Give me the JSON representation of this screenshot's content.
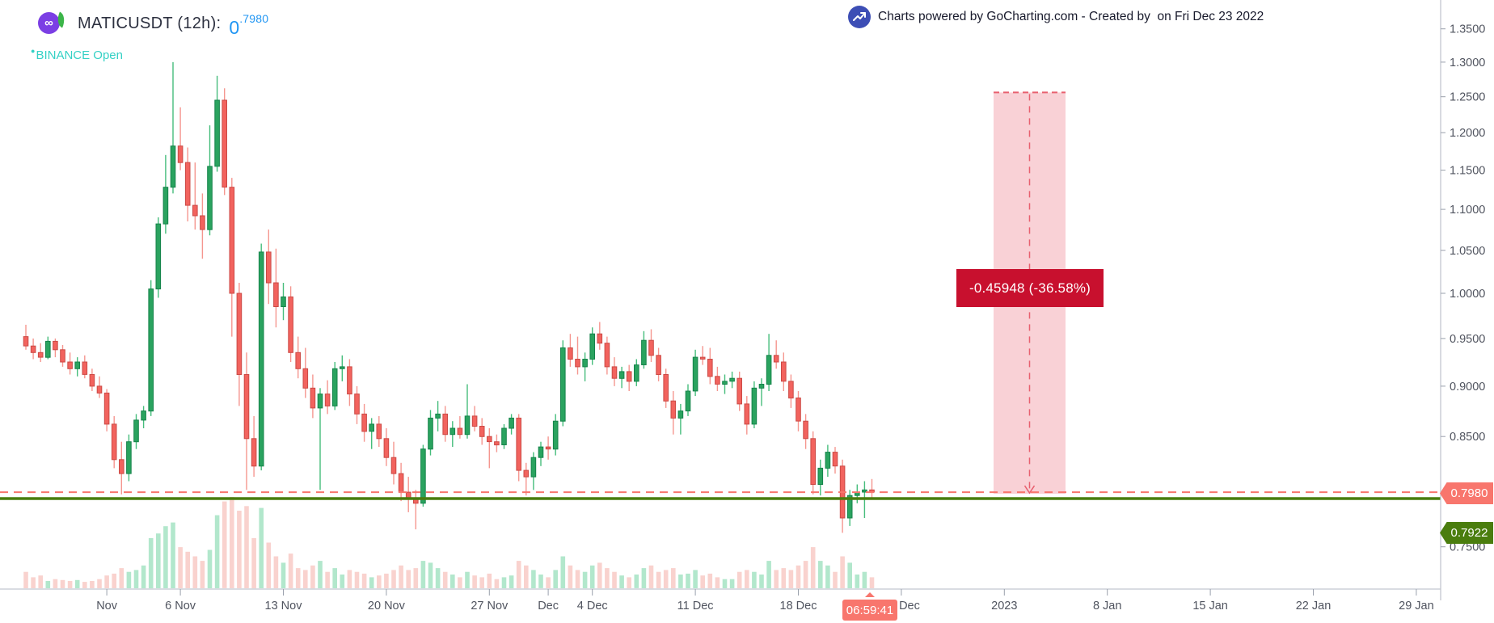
{
  "header": {
    "symbol": "MATICUSDT (12h):",
    "price_main": "0",
    "price_sup": ".7980",
    "exchange_dot": "●",
    "exchange_status": "BINANCE Open",
    "logo_glyph": "∞"
  },
  "attribution": {
    "text": "Charts powered by GoCharting.com - Created by  on Fri Dec 23 2022"
  },
  "price_axis": {
    "last_price_badge": "0.7980",
    "secondary_badge": "0.7922",
    "labels": [
      {
        "text": "1.3500",
        "value": 1.35
      },
      {
        "text": "1.3000",
        "value": 1.3
      },
      {
        "text": "1.2500",
        "value": 1.25
      },
      {
        "text": "1.2000",
        "value": 1.2
      },
      {
        "text": "1.1500",
        "value": 1.15
      },
      {
        "text": "1.1000",
        "value": 1.1
      },
      {
        "text": "1.0500",
        "value": 1.05
      },
      {
        "text": "1.0000",
        "value": 1.0
      },
      {
        "text": "0.9500",
        "value": 0.95
      },
      {
        "text": "0.9000",
        "value": 0.9
      },
      {
        "text": "0.8500",
        "value": 0.85
      },
      {
        "text": "0.7500",
        "value": 0.75
      }
    ]
  },
  "time_axis": {
    "current_time_badge": "06:59:41",
    "labels": [
      {
        "text": "Nov",
        "i": 11
      },
      {
        "text": "6 Nov",
        "i": 21
      },
      {
        "text": "13 Nov",
        "i": 35
      },
      {
        "text": "20 Nov",
        "i": 49
      },
      {
        "text": "27 Nov",
        "i": 63
      },
      {
        "text": "Dec",
        "i": 71
      },
      {
        "text": "4 Dec",
        "i": 77
      },
      {
        "text": "11 Dec",
        "i": 91
      },
      {
        "text": "18 Dec",
        "i": 105
      },
      {
        "text": "25 Dec",
        "i": 119
      },
      {
        "text": "2023",
        "i": 133
      },
      {
        "text": "8 Jan",
        "i": 147
      },
      {
        "text": "15 Jan",
        "i": 161
      },
      {
        "text": "22 Jan",
        "i": 175
      },
      {
        "text": "29 Jan",
        "i": 189
      }
    ]
  },
  "measure_tool": {
    "label": "-0.45948 (-36.58%)",
    "change": "-0.45948",
    "change_pct": "-36.58%",
    "from_price": 1.25602,
    "to_price": 0.79654
  },
  "lines": {
    "last_price_line": 0.798,
    "support_line": 0.7922
  },
  "colors": {
    "bull": "#2aa35f",
    "bull_border": "#15834a",
    "bull_wick": "#46bd7c",
    "bear": "#f2635e",
    "bear_border": "#cb4a45",
    "bear_wick": "#f5968f",
    "bull_vol": "#b2e7cc",
    "bear_vol": "#f9d2ce",
    "last_price": "#f8766d",
    "support": "#4a7d0e",
    "measure_fill": "rgba(236,112,128,0.32)",
    "measure_dash": "#e8606f",
    "measure_label_bg": "#c8102e",
    "axis_line": "#c2c6d0",
    "axis_text": "#50545f",
    "accent_blue": "#2196f3",
    "teal": "#35d1c5",
    "logo_purple": "#7b3fe4",
    "attrib_icon_bg": "#3d4eb5"
  },
  "chart_data": {
    "type": "candlestick",
    "symbol": "MATICUSDT",
    "exchange": "BINANCE",
    "interval": "12h",
    "scale": "log",
    "title": "MATICUSDT (12h)",
    "x_range": [
      "26 Oct 2022",
      "29 Jan 2023"
    ],
    "y_range": [
      0.75,
      1.35
    ],
    "grid": false,
    "legend": "none",
    "last_close": 0.798,
    "candles_note": "each entry = [open, high, low, close, relative_volume]",
    "candles": [
      [
        0.952,
        0.965,
        0.938,
        0.942,
        0.18
      ],
      [
        0.942,
        0.95,
        0.928,
        0.935,
        0.12
      ],
      [
        0.935,
        0.945,
        0.925,
        0.93,
        0.14
      ],
      [
        0.93,
        0.952,
        0.928,
        0.947,
        0.08
      ],
      [
        0.947,
        0.95,
        0.93,
        0.938,
        0.1
      ],
      [
        0.938,
        0.943,
        0.92,
        0.925,
        0.09
      ],
      [
        0.925,
        0.935,
        0.912,
        0.918,
        0.08
      ],
      [
        0.918,
        0.93,
        0.91,
        0.925,
        0.09
      ],
      [
        0.925,
        0.932,
        0.908,
        0.912,
        0.07
      ],
      [
        0.912,
        0.918,
        0.895,
        0.9,
        0.08
      ],
      [
        0.9,
        0.91,
        0.888,
        0.893,
        0.1
      ],
      [
        0.893,
        0.897,
        0.855,
        0.862,
        0.14
      ],
      [
        0.862,
        0.87,
        0.82,
        0.828,
        0.16
      ],
      [
        0.828,
        0.845,
        0.796,
        0.815,
        0.22
      ],
      [
        0.815,
        0.852,
        0.808,
        0.845,
        0.18
      ],
      [
        0.845,
        0.872,
        0.838,
        0.866,
        0.2
      ],
      [
        0.866,
        0.88,
        0.858,
        0.875,
        0.25
      ],
      [
        0.875,
        1.015,
        0.87,
        1.005,
        0.55
      ],
      [
        1.005,
        1.09,
        0.995,
        1.082,
        0.6
      ],
      [
        1.082,
        1.17,
        1.07,
        1.128,
        0.68
      ],
      [
        1.128,
        1.3,
        1.12,
        1.182,
        0.72
      ],
      [
        1.182,
        1.235,
        1.15,
        1.16,
        0.45
      ],
      [
        1.16,
        1.18,
        1.085,
        1.105,
        0.4
      ],
      [
        1.105,
        1.16,
        1.075,
        1.092,
        0.35
      ],
      [
        1.092,
        1.12,
        1.04,
        1.075,
        0.3
      ],
      [
        1.075,
        1.21,
        1.068,
        1.155,
        0.42
      ],
      [
        1.155,
        1.28,
        1.148,
        1.245,
        0.8
      ],
      [
        1.245,
        1.262,
        1.118,
        1.128,
        0.95
      ],
      [
        1.128,
        1.14,
        0.952,
        1.0,
        1.0
      ],
      [
        1.0,
        1.012,
        0.88,
        0.912,
        0.85
      ],
      [
        0.912,
        0.935,
        0.8,
        0.848,
        0.9
      ],
      [
        0.848,
        0.87,
        0.812,
        0.822,
        0.55
      ],
      [
        0.822,
        1.058,
        0.818,
        1.048,
        0.88
      ],
      [
        1.048,
        1.075,
        0.988,
        1.012,
        0.5
      ],
      [
        1.012,
        1.052,
        0.962,
        0.985,
        0.35
      ],
      [
        0.985,
        1.012,
        0.97,
        0.996,
        0.28
      ],
      [
        0.996,
        1.008,
        0.925,
        0.935,
        0.38
      ],
      [
        0.935,
        0.952,
        0.908,
        0.918,
        0.22
      ],
      [
        0.918,
        0.94,
        0.888,
        0.898,
        0.2
      ],
      [
        0.898,
        0.912,
        0.868,
        0.878,
        0.25
      ],
      [
        0.878,
        0.898,
        0.8,
        0.892,
        0.3
      ],
      [
        0.892,
        0.906,
        0.872,
        0.88,
        0.18
      ],
      [
        0.88,
        0.925,
        0.876,
        0.918,
        0.22
      ],
      [
        0.918,
        0.932,
        0.905,
        0.92,
        0.15
      ],
      [
        0.92,
        0.928,
        0.88,
        0.892,
        0.2
      ],
      [
        0.892,
        0.9,
        0.862,
        0.872,
        0.18
      ],
      [
        0.872,
        0.882,
        0.845,
        0.855,
        0.16
      ],
      [
        0.855,
        0.868,
        0.838,
        0.862,
        0.12
      ],
      [
        0.862,
        0.87,
        0.84,
        0.848,
        0.14
      ],
      [
        0.848,
        0.858,
        0.822,
        0.83,
        0.16
      ],
      [
        0.83,
        0.845,
        0.805,
        0.815,
        0.2
      ],
      [
        0.815,
        0.825,
        0.79,
        0.798,
        0.25
      ],
      [
        0.798,
        0.812,
        0.78,
        0.792,
        0.2
      ],
      [
        0.792,
        0.8,
        0.765,
        0.788,
        0.22
      ],
      [
        0.788,
        0.842,
        0.785,
        0.838,
        0.3
      ],
      [
        0.838,
        0.876,
        0.832,
        0.868,
        0.28
      ],
      [
        0.868,
        0.885,
        0.855,
        0.872,
        0.22
      ],
      [
        0.872,
        0.88,
        0.845,
        0.852,
        0.18
      ],
      [
        0.852,
        0.865,
        0.84,
        0.858,
        0.15
      ],
      [
        0.858,
        0.87,
        0.848,
        0.852,
        0.12
      ],
      [
        0.852,
        0.902,
        0.848,
        0.87,
        0.18
      ],
      [
        0.87,
        0.88,
        0.855,
        0.86,
        0.14
      ],
      [
        0.86,
        0.868,
        0.842,
        0.85,
        0.12
      ],
      [
        0.85,
        0.858,
        0.82,
        0.845,
        0.16
      ],
      [
        0.845,
        0.852,
        0.835,
        0.842,
        0.1
      ],
      [
        0.842,
        0.862,
        0.838,
        0.858,
        0.12
      ],
      [
        0.858,
        0.872,
        0.852,
        0.868,
        0.14
      ],
      [
        0.868,
        0.872,
        0.808,
        0.818,
        0.3
      ],
      [
        0.818,
        0.825,
        0.795,
        0.812,
        0.25
      ],
      [
        0.812,
        0.835,
        0.8,
        0.83,
        0.2
      ],
      [
        0.83,
        0.845,
        0.822,
        0.84,
        0.15
      ],
      [
        0.84,
        0.85,
        0.828,
        0.838,
        0.12
      ],
      [
        0.838,
        0.872,
        0.832,
        0.865,
        0.2
      ],
      [
        0.865,
        0.948,
        0.86,
        0.94,
        0.35
      ],
      [
        0.94,
        0.955,
        0.92,
        0.928,
        0.25
      ],
      [
        0.928,
        0.952,
        0.912,
        0.92,
        0.2
      ],
      [
        0.92,
        0.935,
        0.905,
        0.928,
        0.18
      ],
      [
        0.928,
        0.962,
        0.922,
        0.955,
        0.25
      ],
      [
        0.955,
        0.968,
        0.938,
        0.945,
        0.28
      ],
      [
        0.945,
        0.952,
        0.912,
        0.92,
        0.22
      ],
      [
        0.92,
        0.93,
        0.9,
        0.908,
        0.18
      ],
      [
        0.908,
        0.92,
        0.898,
        0.915,
        0.14
      ],
      [
        0.915,
        0.922,
        0.895,
        0.905,
        0.12
      ],
      [
        0.905,
        0.928,
        0.9,
        0.922,
        0.15
      ],
      [
        0.922,
        0.958,
        0.918,
        0.948,
        0.22
      ],
      [
        0.948,
        0.96,
        0.925,
        0.932,
        0.25
      ],
      [
        0.932,
        0.94,
        0.905,
        0.912,
        0.18
      ],
      [
        0.912,
        0.918,
        0.878,
        0.885,
        0.2
      ],
      [
        0.885,
        0.895,
        0.852,
        0.868,
        0.22
      ],
      [
        0.868,
        0.882,
        0.852,
        0.875,
        0.15
      ],
      [
        0.875,
        0.902,
        0.87,
        0.895,
        0.16
      ],
      [
        0.895,
        0.938,
        0.89,
        0.93,
        0.2
      ],
      [
        0.93,
        0.942,
        0.922,
        0.928,
        0.14
      ],
      [
        0.928,
        0.94,
        0.902,
        0.91,
        0.16
      ],
      [
        0.91,
        0.92,
        0.895,
        0.902,
        0.12
      ],
      [
        0.902,
        0.912,
        0.892,
        0.905,
        0.1
      ],
      [
        0.905,
        0.915,
        0.898,
        0.908,
        0.1
      ],
      [
        0.908,
        0.915,
        0.875,
        0.882,
        0.18
      ],
      [
        0.882,
        0.89,
        0.852,
        0.862,
        0.2
      ],
      [
        0.862,
        0.905,
        0.858,
        0.898,
        0.18
      ],
      [
        0.898,
        0.908,
        0.88,
        0.902,
        0.15
      ],
      [
        0.902,
        0.955,
        0.895,
        0.932,
        0.3
      ],
      [
        0.932,
        0.948,
        0.918,
        0.925,
        0.2
      ],
      [
        0.925,
        0.935,
        0.895,
        0.905,
        0.22
      ],
      [
        0.905,
        0.912,
        0.878,
        0.888,
        0.2
      ],
      [
        0.888,
        0.895,
        0.855,
        0.865,
        0.25
      ],
      [
        0.865,
        0.872,
        0.838,
        0.848,
        0.3
      ],
      [
        0.848,
        0.855,
        0.796,
        0.805,
        0.45
      ],
      [
        0.805,
        0.828,
        0.795,
        0.82,
        0.3
      ],
      [
        0.82,
        0.842,
        0.812,
        0.835,
        0.25
      ],
      [
        0.835,
        0.84,
        0.815,
        0.822,
        0.18
      ],
      [
        0.822,
        0.828,
        0.762,
        0.775,
        0.35
      ],
      [
        0.775,
        0.8,
        0.768,
        0.795,
        0.28
      ],
      [
        0.795,
        0.805,
        0.788,
        0.798,
        0.15
      ],
      [
        0.798,
        0.808,
        0.775,
        0.8,
        0.18
      ],
      [
        0.8,
        0.81,
        0.792,
        0.798,
        0.12
      ]
    ]
  }
}
